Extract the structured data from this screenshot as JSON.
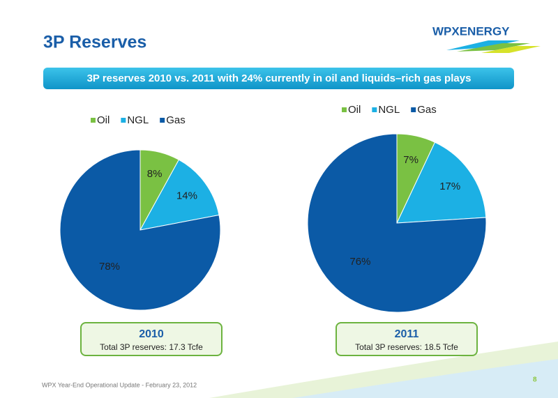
{
  "header": {
    "title": "3P Reserves",
    "logo": "WPXENERGY",
    "banner": "3P reserves 2010 vs. 2011 with 24% currently in oil and liquids–rich gas plays"
  },
  "footer": {
    "text": "WPX Year-End Operational Update - February 23, 2012",
    "page": "8"
  },
  "chart_data": [
    {
      "type": "pie",
      "title": "2010",
      "subtitle": "Total 3P reserves: 17.3 Tcfe",
      "categories": [
        "Oil",
        "NGL",
        "Gas"
      ],
      "values": [
        8,
        14,
        78
      ],
      "value_labels": [
        "8%",
        "14%",
        "78%"
      ],
      "colors": [
        "#7ac143",
        "#1cb0e4",
        "#0b5aa6"
      ],
      "legend": "top"
    },
    {
      "type": "pie",
      "title": "2011",
      "subtitle": "Total 3P reserves: 18.5 Tcfe",
      "categories": [
        "Oil",
        "NGL",
        "Gas"
      ],
      "values": [
        7,
        17,
        76
      ],
      "value_labels": [
        "7%",
        "17%",
        "76%"
      ],
      "colors": [
        "#7ac143",
        "#1cb0e4",
        "#0b5aa6"
      ],
      "legend": "top"
    }
  ]
}
